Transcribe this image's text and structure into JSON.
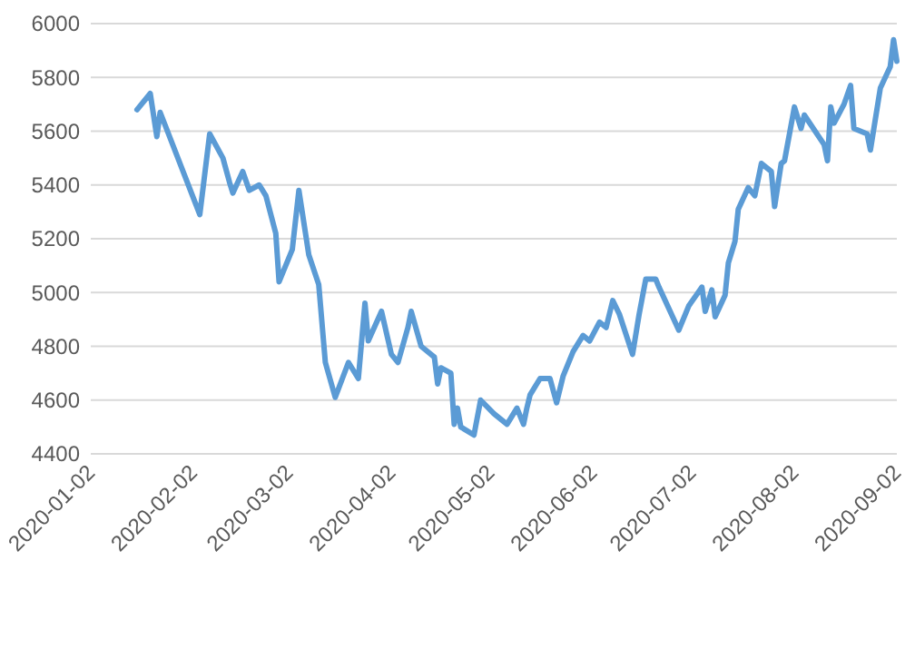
{
  "chart_data": {
    "type": "line",
    "x": [
      "2020-01-16",
      "2020-01-20",
      "2020-01-22",
      "2020-01-23",
      "2020-02-04",
      "2020-02-07",
      "2020-02-11",
      "2020-02-13",
      "2020-02-14",
      "2020-02-17",
      "2020-02-19",
      "2020-02-22",
      "2020-02-24",
      "2020-02-27",
      "2020-02-28",
      "2020-03-03",
      "2020-03-05",
      "2020-03-08",
      "2020-03-11",
      "2020-03-13",
      "2020-03-16",
      "2020-03-20",
      "2020-03-23",
      "2020-03-25",
      "2020-03-26",
      "2020-03-30",
      "2020-04-02",
      "2020-04-04",
      "2020-04-07",
      "2020-04-08",
      "2020-04-11",
      "2020-04-15",
      "2020-04-16",
      "2020-04-17",
      "2020-04-20",
      "2020-04-21",
      "2020-04-22",
      "2020-04-23",
      "2020-04-27",
      "2020-04-29",
      "2020-05-03",
      "2020-05-07",
      "2020-05-10",
      "2020-05-12",
      "2020-05-13",
      "2020-05-14",
      "2020-05-17",
      "2020-05-20",
      "2020-05-22",
      "2020-05-24",
      "2020-05-27",
      "2020-05-30",
      "2020-06-01",
      "2020-06-04",
      "2020-06-06",
      "2020-06-08",
      "2020-06-10",
      "2020-06-14",
      "2020-06-16",
      "2020-06-18",
      "2020-06-21",
      "2020-06-22",
      "2020-06-28",
      "2020-07-01",
      "2020-07-05",
      "2020-07-06",
      "2020-07-08",
      "2020-07-09",
      "2020-07-12",
      "2020-07-13",
      "2020-07-15",
      "2020-07-16",
      "2020-07-19",
      "2020-07-21",
      "2020-07-23",
      "2020-07-26",
      "2020-07-27",
      "2020-07-29",
      "2020-07-30",
      "2020-08-02",
      "2020-08-04",
      "2020-08-05",
      "2020-08-11",
      "2020-08-12",
      "2020-08-13",
      "2020-08-14",
      "2020-08-17",
      "2020-08-19",
      "2020-08-20",
      "2020-08-24",
      "2020-08-25",
      "2020-08-28",
      "2020-08-31",
      "2020-09-01",
      "2020-09-02"
    ],
    "series": [
      {
        "color": "#5b9bd5",
        "values": [
          5680,
          5740,
          5580,
          5670,
          5290,
          5590,
          5500,
          5410,
          5370,
          5450,
          5380,
          5400,
          5360,
          5220,
          5040,
          5160,
          5380,
          5140,
          5030,
          4740,
          4610,
          4740,
          4680,
          4960,
          4820,
          4930,
          4770,
          4740,
          4870,
          4930,
          4800,
          4760,
          4660,
          4720,
          4700,
          4510,
          4570,
          4500,
          4470,
          4600,
          4550,
          4510,
          4570,
          4510,
          4570,
          4620,
          4680,
          4680,
          4590,
          4690,
          4780,
          4840,
          4820,
          4890,
          4870,
          4970,
          4920,
          4770,
          4920,
          5050,
          5050,
          5020,
          4860,
          4950,
          5020,
          4930,
          5010,
          4910,
          4990,
          5110,
          5190,
          5310,
          5390,
          5360,
          5480,
          5450,
          5320,
          5480,
          5490,
          5690,
          5610,
          5660,
          5550,
          5490,
          5690,
          5630,
          5700,
          5770,
          5610,
          5590,
          5530,
          5760,
          5840,
          5940,
          5860
        ]
      }
    ],
    "xlim": [
      "2020-01-02",
      "2020-09-02"
    ],
    "xticks": [
      {
        "value": "2020-01-02",
        "label": "2020-01-02"
      },
      {
        "value": "2020-02-02",
        "label": "2020-02-02"
      },
      {
        "value": "2020-03-02",
        "label": "2020-03-02"
      },
      {
        "value": "2020-04-02",
        "label": "2020-04-02"
      },
      {
        "value": "2020-05-02",
        "label": "2020-05-02"
      },
      {
        "value": "2020-06-02",
        "label": "2020-06-02"
      },
      {
        "value": "2020-07-02",
        "label": "2020-07-02"
      },
      {
        "value": "2020-08-02",
        "label": "2020-08-02"
      },
      {
        "value": "2020-09-02",
        "label": "2020-09-02"
      }
    ],
    "ylim": [
      4400,
      6000
    ],
    "yticks": [
      4400,
      4600,
      4800,
      5000,
      5200,
      5400,
      5600,
      5800,
      6000
    ],
    "grid": "y",
    "marker": "none",
    "line_style": "solid"
  }
}
